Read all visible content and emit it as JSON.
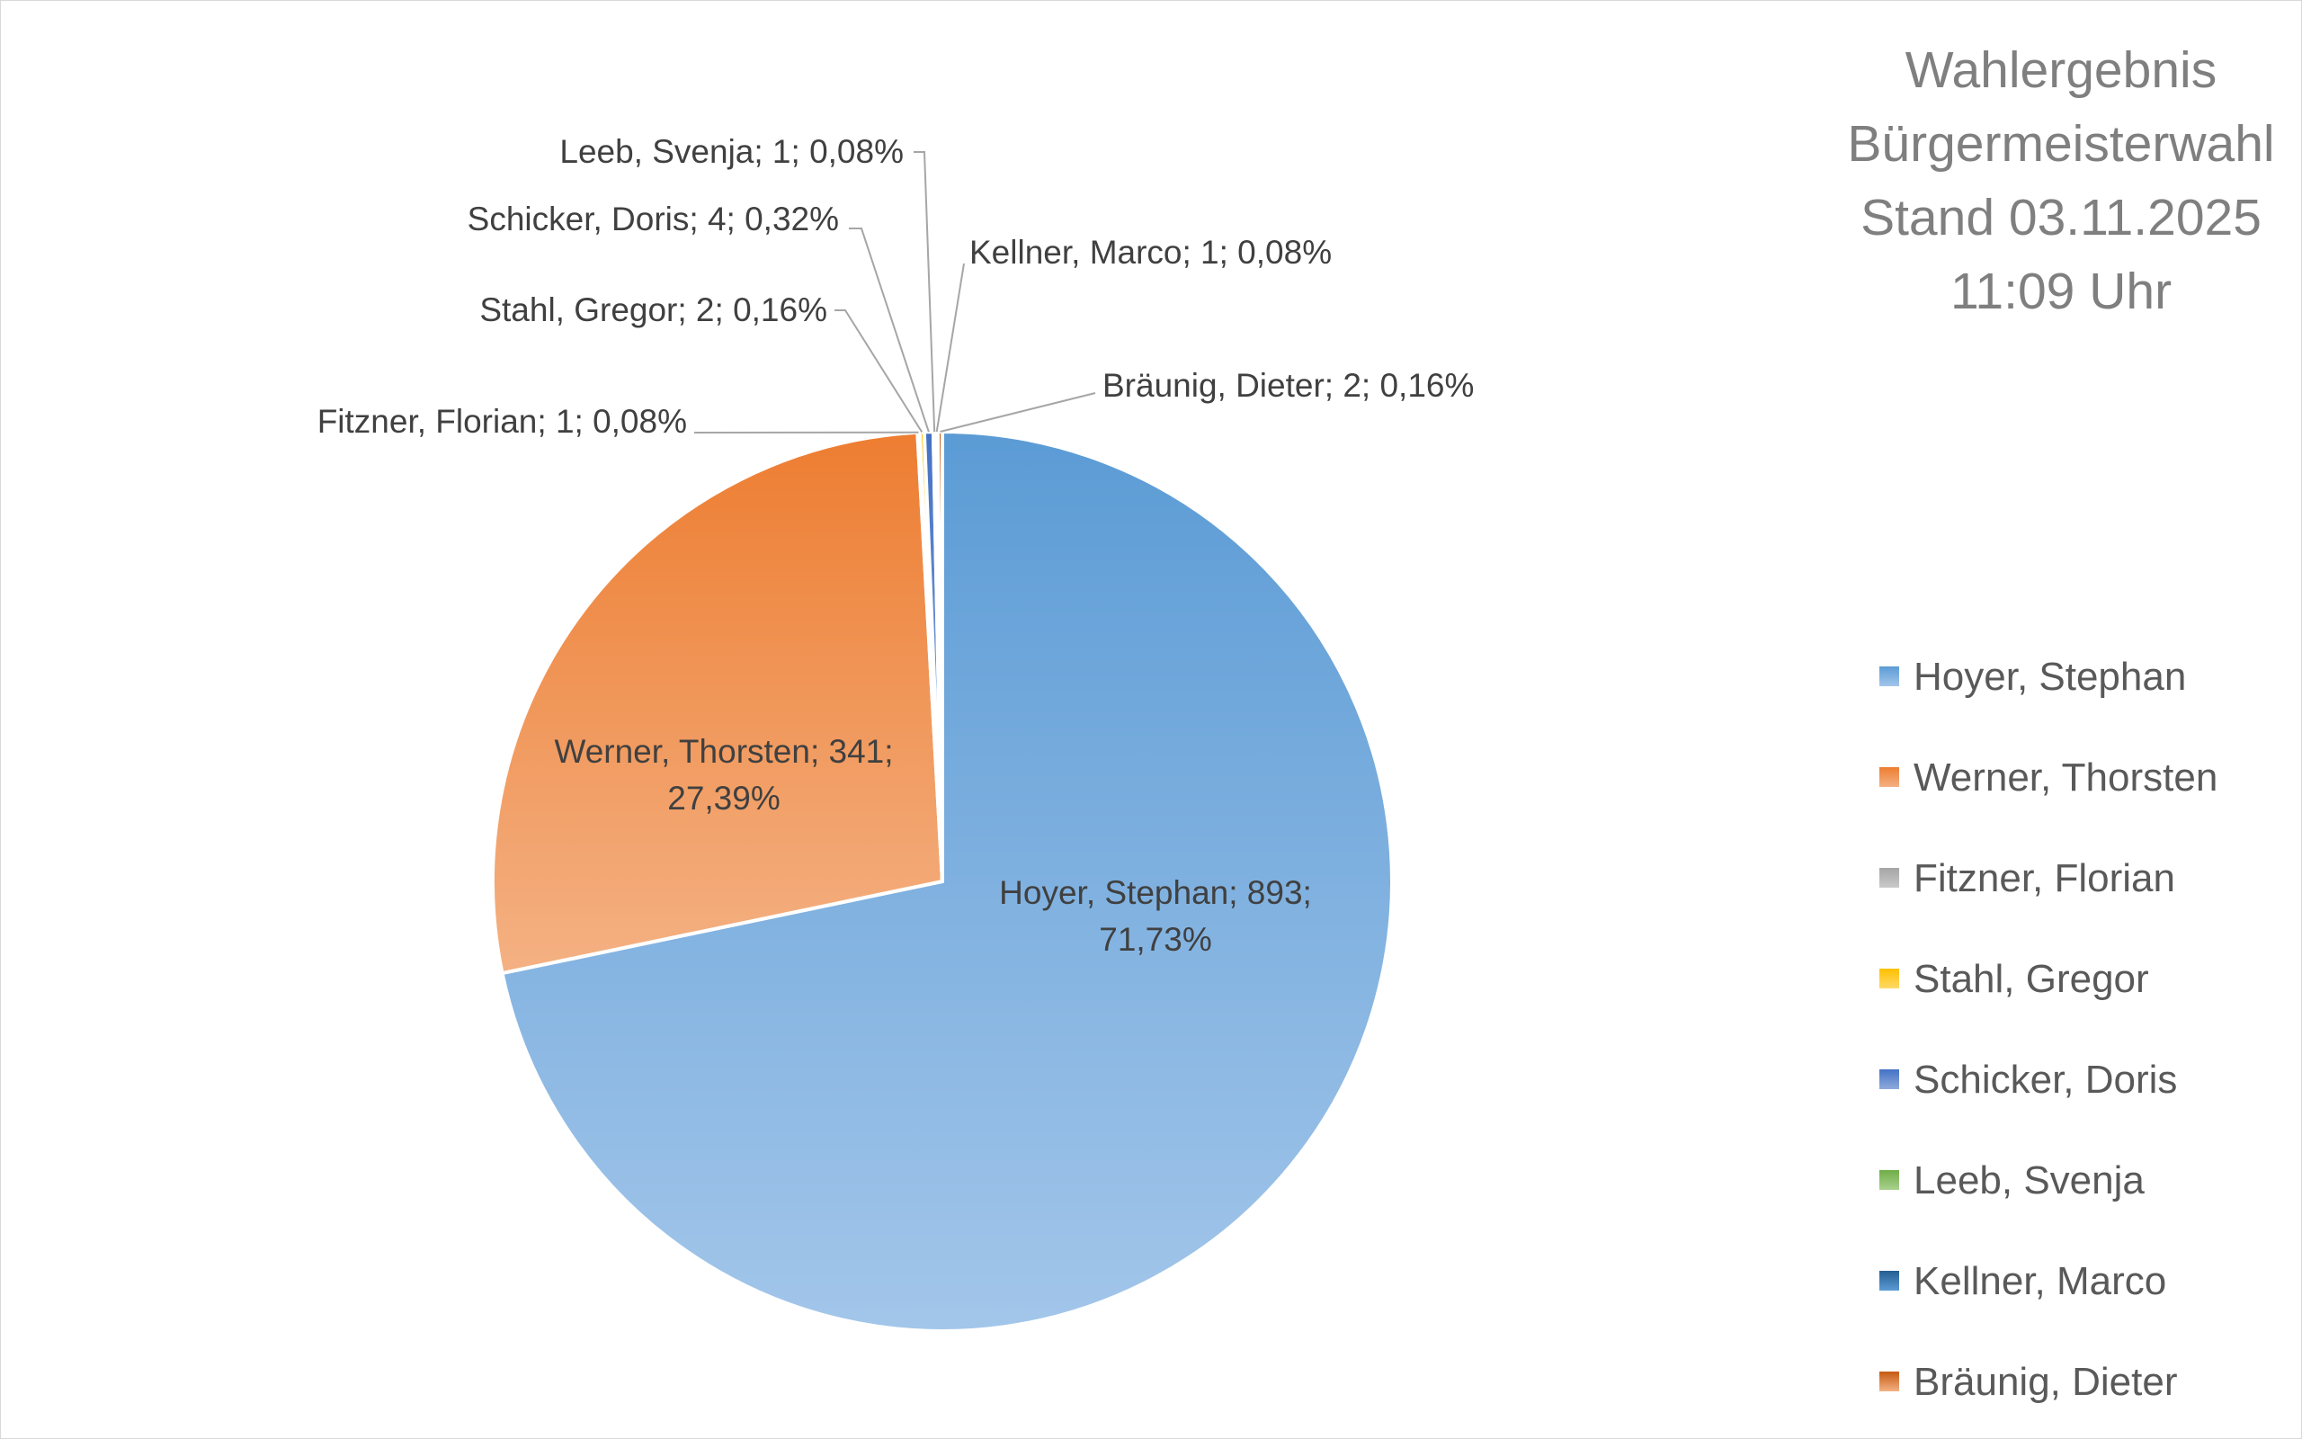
{
  "chart_data": {
    "type": "pie",
    "title_lines": [
      "Wahlergebnis",
      "Bürgermeisterwahl",
      "Stand 03.11.2025",
      "11:09 Uhr"
    ],
    "slices": [
      {
        "name": "Hoyer, Stephan",
        "value": 893,
        "percent": "71,73%",
        "label": "Hoyer, Stephan; 893;",
        "label_cont": "71,73%",
        "color_top": "#5b9bd5",
        "color_bottom": "#a3c6ea"
      },
      {
        "name": "Werner, Thorsten",
        "value": 341,
        "percent": "27,39%",
        "label": "Werner, Thorsten; 341;",
        "label_cont": "27,39%",
        "color_top": "#ed7d31",
        "color_bottom": "#f4b183"
      },
      {
        "name": "Fitzner, Florian",
        "value": 1,
        "percent": "0,08%",
        "label": "Fitzner, Florian; 1; 0,08%",
        "color_top": "#a5a5a5",
        "color_bottom": "#c9c9c9"
      },
      {
        "name": "Stahl, Gregor",
        "value": 2,
        "percent": "0,16%",
        "label": "Stahl, Gregor; 2; 0,16%",
        "color_top": "#ffc000",
        "color_bottom": "#ffd966"
      },
      {
        "name": "Schicker, Doris",
        "value": 4,
        "percent": "0,32%",
        "label": "Schicker, Doris; 4; 0,32%",
        "color_top": "#4472c4",
        "color_bottom": "#8faadc"
      },
      {
        "name": "Leeb, Svenja",
        "value": 1,
        "percent": "0,08%",
        "label": "Leeb, Svenja; 1; 0,08%",
        "color_top": "#70ad47",
        "color_bottom": "#a9d18e"
      },
      {
        "name": "Kellner, Marco",
        "value": 1,
        "percent": "0,08%",
        "label": "Kellner, Marco; 1; 0,08%",
        "color_top": "#255e91",
        "color_bottom": "#5b9bd5"
      },
      {
        "name": "Bräunig, Dieter",
        "value": 2,
        "percent": "0,16%",
        "label": "Bräunig, Dieter; 2; 0,16%",
        "color_top": "#c55a11",
        "color_bottom": "#f4b183"
      }
    ],
    "legend_position": "right"
  }
}
